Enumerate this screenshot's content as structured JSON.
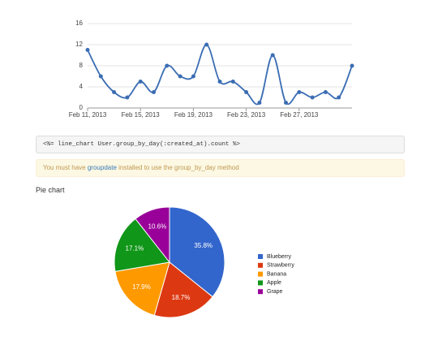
{
  "chart_data": [
    {
      "type": "line",
      "x": [
        "2013-02-11",
        "2013-02-12",
        "2013-02-13",
        "2013-02-14",
        "2013-02-15",
        "2013-02-16",
        "2013-02-17",
        "2013-02-18",
        "2013-02-19",
        "2013-02-20",
        "2013-02-21",
        "2013-02-22",
        "2013-02-23",
        "2013-02-24",
        "2013-02-25",
        "2013-02-26",
        "2013-02-27",
        "2013-02-28",
        "2013-03-01",
        "2013-03-02",
        "2013-03-03"
      ],
      "series": [
        {
          "color": "#3b6db3",
          "values": [
            11,
            6,
            3,
            2,
            5,
            3,
            8,
            6,
            6,
            12,
            5,
            5,
            3,
            1,
            10,
            1,
            3,
            2,
            3,
            2,
            8
          ]
        }
      ],
      "xlim": [
        "2013-02-11",
        "2013-03-03"
      ],
      "xticks": [
        {
          "value": "2013-02-11",
          "label": "Feb 11, 2013"
        },
        {
          "value": "2013-02-15",
          "label": "Feb 15, 2013"
        },
        {
          "value": "2013-02-19",
          "label": "Feb 19, 2013"
        },
        {
          "value": "2013-02-23",
          "label": "Feb 23, 2013"
        },
        {
          "value": "2013-02-27",
          "label": "Feb 27, 2013"
        }
      ],
      "ylim": [
        0,
        16
      ],
      "yticks": [
        0,
        4,
        8,
        12,
        16
      ],
      "grid": true
    },
    {
      "type": "pie",
      "categories": [
        "Blueberry",
        "Strawberry",
        "Banana",
        "Apple",
        "Grape"
      ],
      "values": [
        35.8,
        18.7,
        17.9,
        17.1,
        10.6
      ],
      "value_labels": [
        "35.8%",
        "18.7%",
        "17.9%",
        "17.1%",
        "10.6%"
      ],
      "colors": [
        "#3366cc",
        "#dc3912",
        "#ff9900",
        "#109618",
        "#990099"
      ],
      "legend": "right"
    }
  ],
  "code": "<%= line_chart User.group_by_day(:created_at).count %>",
  "alert": {
    "before": "You must have ",
    "link": "groupdate",
    "after": " installed to use the group_by_day method"
  },
  "section_title": "Pie chart"
}
